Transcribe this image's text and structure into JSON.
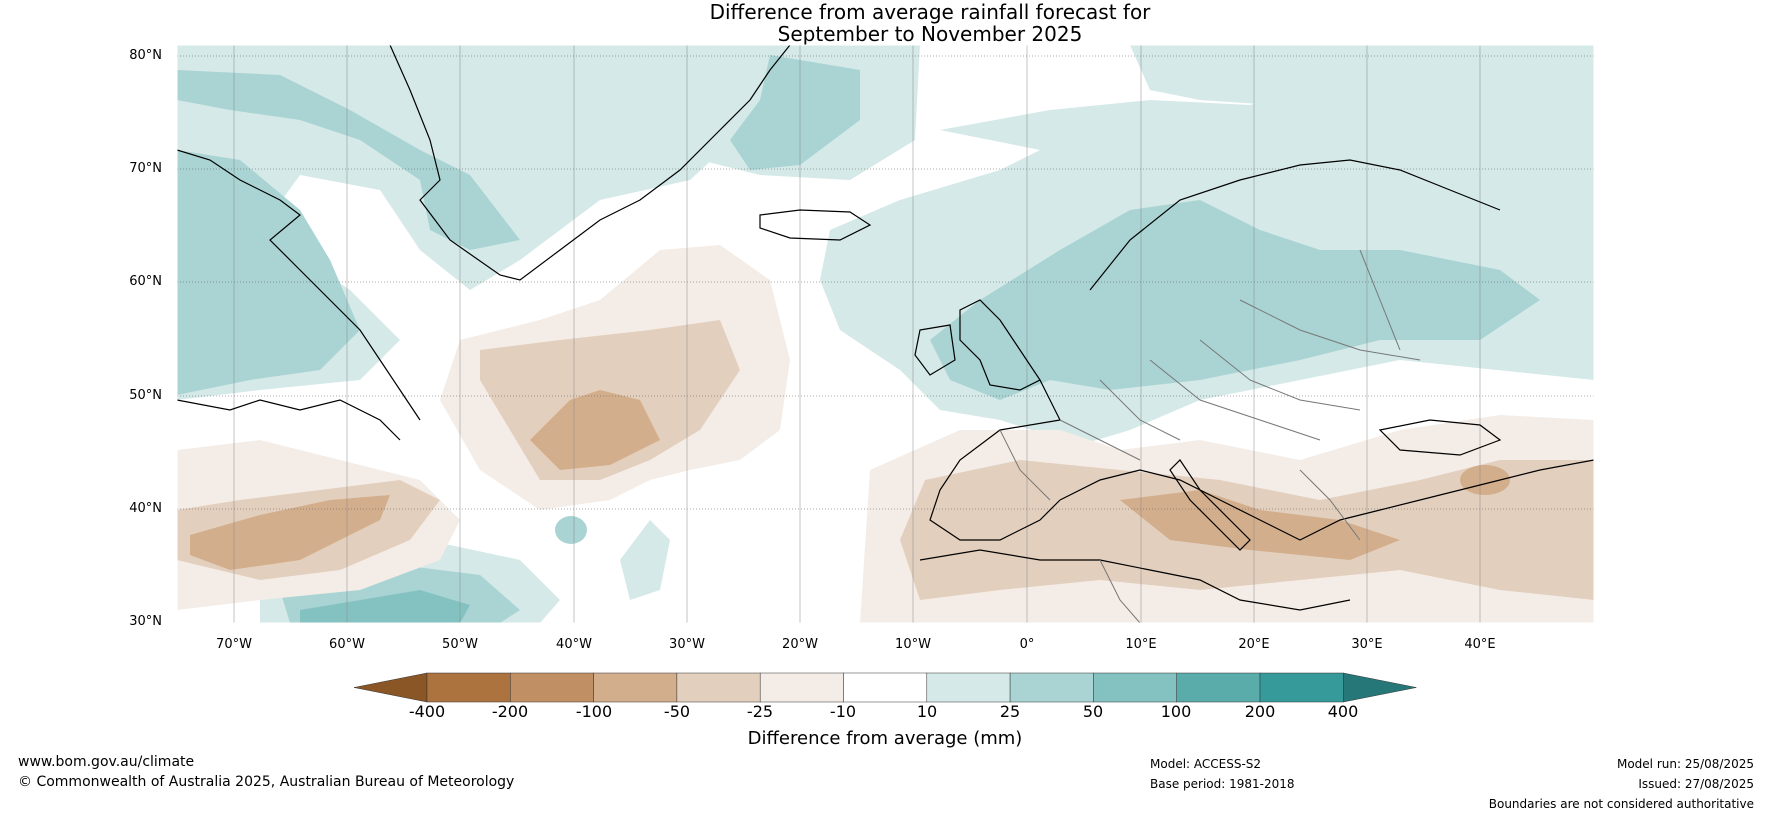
{
  "title": {
    "line1": "Difference from average rainfall forecast for",
    "line2": "September to November 2025"
  },
  "map": {
    "lat_labels": [
      "80°N",
      "70°N",
      "60°N",
      "50°N",
      "40°N",
      "30°N"
    ],
    "lon_labels": [
      "70°W",
      "60°W",
      "50°W",
      "40°W",
      "30°W",
      "20°W",
      "10°W",
      "0°",
      "10°E",
      "20°E",
      "30°E",
      "40°E"
    ],
    "extent": {
      "lon_min": -75,
      "lon_max": 50,
      "lat_min": 30,
      "lat_max": 81
    }
  },
  "colorbar": {
    "labels": [
      "-400",
      "-200",
      "-100",
      "-50",
      "-25",
      "-10",
      "10",
      "25",
      "50",
      "100",
      "200",
      "400"
    ],
    "colors": [
      "#8a5626",
      "#ad733f",
      "#c08f63",
      "#d2ae8c",
      "#e3cfbd",
      "#f4ede7",
      "#ffffff",
      "#d4e9e8",
      "#a9d4d3",
      "#84c2c1",
      "#5aacab",
      "#36999a",
      "#267878"
    ],
    "title": "Difference from average (mm)"
  },
  "footer": {
    "site": "www.bom.gov.au/climate",
    "copyright": "© Commonwealth of Australia 2025, Australian Bureau of Meteorology",
    "model": "Model: ACCESS-S2",
    "base_period": "Base period: 1981-2018",
    "model_run": "Model run: 25/08/2025",
    "issued": "Issued: 27/08/2025",
    "disclaimer": "Boundaries are not considered authoritative"
  }
}
